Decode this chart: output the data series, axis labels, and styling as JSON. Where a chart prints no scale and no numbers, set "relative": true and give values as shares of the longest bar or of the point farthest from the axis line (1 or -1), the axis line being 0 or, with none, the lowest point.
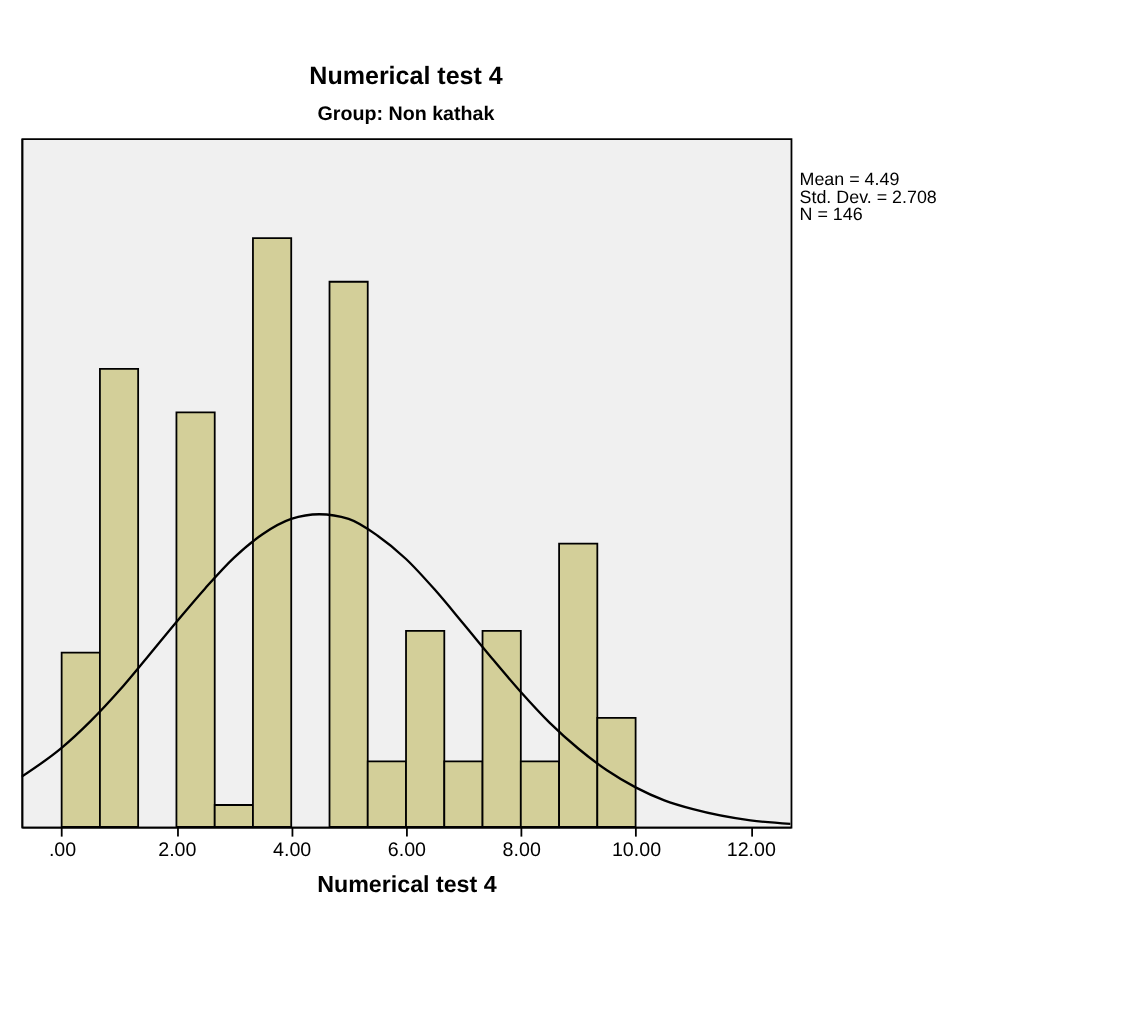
{
  "chart_data": {
    "type": "histogram",
    "title": "Numerical test 4",
    "subtitle": "Group: Non kathak",
    "xlabel": "Numerical test 4",
    "relative": true,
    "color": "#d3cf99",
    "bins": [
      0,
      0.667,
      1.333,
      2,
      2.667,
      3.333,
      4,
      4.667,
      5.333,
      6,
      6.667,
      7.333,
      8,
      8.667,
      9.333,
      10
    ],
    "values": [
      0.296,
      0.778,
      0,
      0.704,
      0.037,
      1,
      0,
      0.926,
      0.111,
      0.333,
      0.111,
      0.333,
      0.111,
      0.481,
      0.185
    ],
    "series": [
      {
        "type": "line",
        "color": "#000000",
        "x": [
          -0.7,
          0,
          0.5,
          1,
          1.5,
          2,
          2.5,
          3,
          3.5,
          4,
          4.49,
          5,
          5.5,
          6,
          6.5,
          7,
          7.5,
          8,
          8.5,
          9,
          9.5,
          10,
          10.5,
          11,
          12,
          12.7
        ],
        "values": [
          0.085,
          0.134,
          0.179,
          0.231,
          0.289,
          0.348,
          0.405,
          0.457,
          0.497,
          0.523,
          0.531,
          0.523,
          0.495,
          0.455,
          0.403,
          0.345,
          0.286,
          0.229,
          0.177,
          0.133,
          0.096,
          0.067,
          0.045,
          0.03,
          0.011,
          0.005
        ]
      }
    ],
    "xlim": [
      -0.7,
      12.7
    ],
    "xticks": [
      {
        "value": 0,
        "label": ".00"
      },
      {
        "value": 2,
        "label": "2.00"
      },
      {
        "value": 4,
        "label": "4.00"
      },
      {
        "value": 6,
        "label": "6.00"
      },
      {
        "value": 8,
        "label": "8.00"
      },
      {
        "value": 10,
        "label": "10.00"
      },
      {
        "value": 12,
        "label": "12.00"
      }
    ],
    "annotations": [
      "Mean = 4.49",
      "Std. Dev. = 2.708",
      "N = 146"
    ],
    "grid": false
  }
}
